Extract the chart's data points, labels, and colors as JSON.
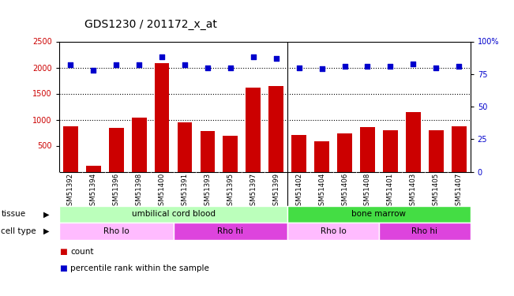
{
  "title": "GDS1230 / 201172_x_at",
  "samples": [
    "GSM51392",
    "GSM51394",
    "GSM51396",
    "GSM51398",
    "GSM51400",
    "GSM51391",
    "GSM51393",
    "GSM51395",
    "GSM51397",
    "GSM51399",
    "GSM51402",
    "GSM51404",
    "GSM51406",
    "GSM51408",
    "GSM51401",
    "GSM51403",
    "GSM51405",
    "GSM51407"
  ],
  "counts": [
    870,
    120,
    840,
    1040,
    2090,
    940,
    780,
    690,
    1620,
    1650,
    710,
    590,
    730,
    860,
    800,
    1140,
    800,
    870
  ],
  "percentiles": [
    82,
    78,
    82,
    82,
    88,
    82,
    80,
    80,
    88,
    87,
    80,
    79,
    81,
    81,
    81,
    83,
    80,
    81
  ],
  "bar_color": "#cc0000",
  "dot_color": "#0000cc",
  "ylim_left": [
    0,
    2500
  ],
  "ylim_right": [
    0,
    100
  ],
  "yticks_left": [
    500,
    1000,
    1500,
    2000,
    2500
  ],
  "yticks_right": [
    0,
    25,
    50,
    75,
    100
  ],
  "grid_values": [
    1000,
    1500,
    2000
  ],
  "tissue_groups": [
    {
      "label": "umbilical cord blood",
      "start": 0,
      "end": 10,
      "color": "#bbffbb"
    },
    {
      "label": "bone marrow",
      "start": 10,
      "end": 18,
      "color": "#44dd44"
    }
  ],
  "cell_type_groups": [
    {
      "label": "Rho lo",
      "start": 0,
      "end": 5,
      "color": "#ffbbff"
    },
    {
      "label": "Rho hi",
      "start": 5,
      "end": 10,
      "color": "#dd44dd"
    },
    {
      "label": "Rho lo",
      "start": 10,
      "end": 14,
      "color": "#ffbbff"
    },
    {
      "label": "Rho hi",
      "start": 14,
      "end": 18,
      "color": "#dd44dd"
    }
  ],
  "tissue_label": "tissue",
  "cell_type_label": "cell type",
  "legend_count_label": "count",
  "legend_pct_label": "percentile rank within the sample",
  "label_bg_color": "#cccccc",
  "plot_bg": "#ffffff",
  "right_axis_top_label": "100%"
}
